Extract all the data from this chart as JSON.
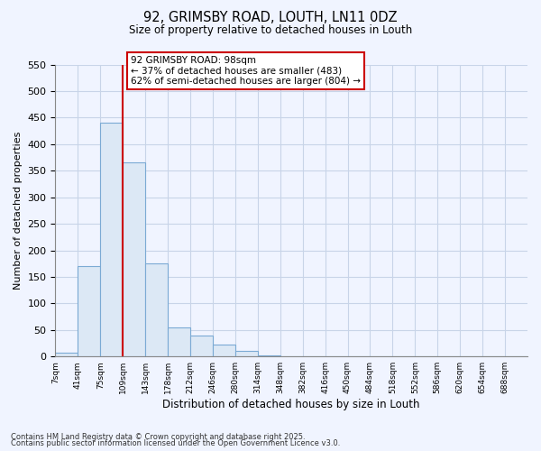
{
  "title": "92, GRIMSBY ROAD, LOUTH, LN11 0DZ",
  "subtitle": "Size of property relative to detached houses in Louth",
  "bar_values": [
    8,
    170,
    440,
    365,
    175,
    55,
    40,
    22,
    10,
    2,
    1,
    0,
    0,
    0,
    0,
    0,
    0,
    0,
    0,
    1,
    0
  ],
  "bin_labels": [
    "7sqm",
    "41sqm",
    "75sqm",
    "109sqm",
    "143sqm",
    "178sqm",
    "212sqm",
    "246sqm",
    "280sqm",
    "314sqm",
    "348sqm",
    "382sqm",
    "416sqm",
    "450sqm",
    "484sqm",
    "518sqm",
    "552sqm",
    "586sqm",
    "620sqm",
    "654sqm",
    "688sqm"
  ],
  "bar_color": "#c8d8ee",
  "bar_face_color": "#dce8f5",
  "bar_edge_color": "#7baad4",
  "property_line_color": "#cc0000",
  "annotation_text_line1": "92 GRIMSBY ROAD: 98sqm",
  "annotation_text_line2": "← 37% of detached houses are smaller (483)",
  "annotation_text_line3": "62% of semi-detached houses are larger (804) →",
  "annotation_box_color": "white",
  "annotation_box_edge_color": "#cc0000",
  "ylabel": "Number of detached properties",
  "xlabel": "Distribution of detached houses by size in Louth",
  "ylim": [
    0,
    550
  ],
  "yticks": [
    0,
    50,
    100,
    150,
    200,
    250,
    300,
    350,
    400,
    450,
    500,
    550
  ],
  "footnote1": "Contains HM Land Registry data © Crown copyright and database right 2025.",
  "footnote2": "Contains public sector information licensed under the Open Government Licence v3.0.",
  "bg_color": "#f0f4ff",
  "grid_color": "#c8d4e8"
}
